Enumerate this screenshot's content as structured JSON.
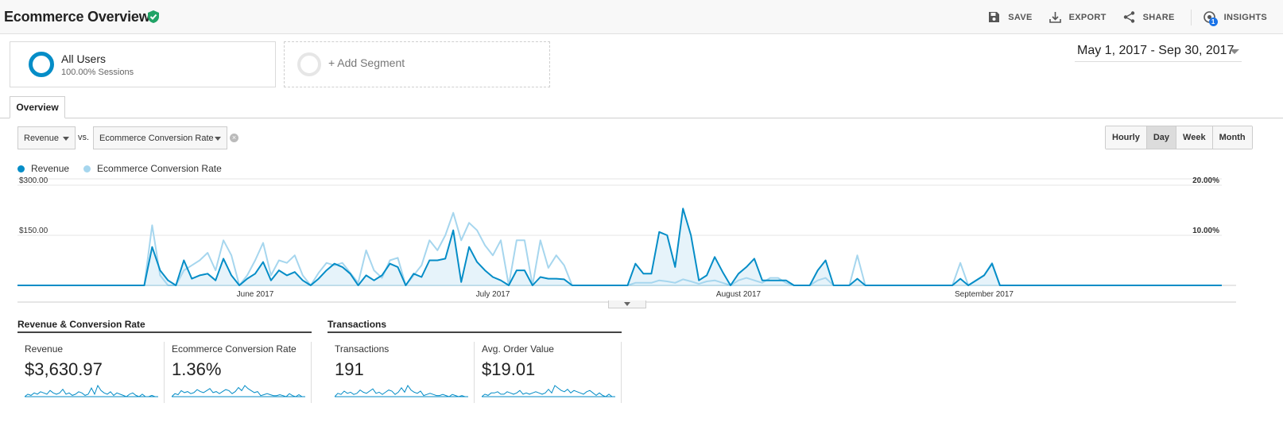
{
  "header": {
    "title": "Ecommerce Overview",
    "actions": [
      {
        "label": "SAVE",
        "icon": "save-icon"
      },
      {
        "label": "EXPORT",
        "icon": "export-icon"
      },
      {
        "label": "SHARE",
        "icon": "share-icon"
      },
      {
        "label": "INSIGHTS",
        "icon": "insights-icon",
        "badge": "1"
      }
    ]
  },
  "segments": {
    "all_users": {
      "name": "All Users",
      "sub": "100.00% Sessions"
    },
    "add_segment": "+ Add Segment"
  },
  "date_range": "May 1, 2017 - Sep 30, 2017",
  "tabs": [
    {
      "label": "Overview"
    }
  ],
  "metric_picker": {
    "primary": "Revenue",
    "vs": "vs.",
    "secondary": "Ecommerce Conversion Rate"
  },
  "time_toggles": [
    {
      "label": "Hourly",
      "active": false
    },
    {
      "label": "Day",
      "active": true
    },
    {
      "label": "Week",
      "active": false
    },
    {
      "label": "Month",
      "active": false
    }
  ],
  "colors": {
    "revenue": "#058dc7",
    "conversion": "#a6d6ee",
    "revenue_fill": "#e6f3fa"
  },
  "chart_data": {
    "type": "line",
    "x_labels": [
      "June 2017",
      "July 2017",
      "August 2017",
      "September 2017"
    ],
    "x_label_days": [
      31,
      61,
      92,
      123
    ],
    "x_range": [
      1,
      153
    ],
    "left_axis": {
      "ticks": [
        "$150.00",
        "$300.00"
      ],
      "tick_values": [
        150,
        300
      ],
      "max": 300
    },
    "right_axis": {
      "ticks": [
        "10.00%",
        "20.00%"
      ],
      "tick_values": [
        10,
        20
      ],
      "max": 20
    },
    "series": [
      {
        "name": "Revenue",
        "axis": "left",
        "points": [
          [
            1,
            0
          ],
          [
            17,
            0
          ],
          [
            18,
            115
          ],
          [
            19,
            45
          ],
          [
            20,
            15
          ],
          [
            21,
            0
          ],
          [
            22,
            75
          ],
          [
            23,
            20
          ],
          [
            24,
            30
          ],
          [
            25,
            35
          ],
          [
            26,
            15
          ],
          [
            27,
            80
          ],
          [
            28,
            30
          ],
          [
            29,
            0
          ],
          [
            30,
            20
          ],
          [
            31,
            35
          ],
          [
            32,
            70
          ],
          [
            33,
            15
          ],
          [
            34,
            45
          ],
          [
            35,
            30
          ],
          [
            36,
            40
          ],
          [
            37,
            15
          ],
          [
            38,
            0
          ],
          [
            39,
            20
          ],
          [
            40,
            45
          ],
          [
            41,
            65
          ],
          [
            42,
            55
          ],
          [
            43,
            35
          ],
          [
            44,
            0
          ],
          [
            45,
            30
          ],
          [
            46,
            15
          ],
          [
            47,
            30
          ],
          [
            48,
            65
          ],
          [
            49,
            55
          ],
          [
            50,
            0
          ],
          [
            51,
            35
          ],
          [
            52,
            25
          ],
          [
            53,
            75
          ],
          [
            54,
            75
          ],
          [
            55,
            80
          ],
          [
            56,
            165
          ],
          [
            57,
            10
          ],
          [
            58,
            115
          ],
          [
            59,
            70
          ],
          [
            60,
            45
          ],
          [
            61,
            25
          ],
          [
            62,
            15
          ],
          [
            63,
            0
          ],
          [
            64,
            45
          ],
          [
            65,
            45
          ],
          [
            66,
            0
          ],
          [
            67,
            25
          ],
          [
            68,
            20
          ],
          [
            69,
            20
          ],
          [
            70,
            18
          ],
          [
            71,
            0
          ],
          [
            78,
            0
          ],
          [
            79,
            65
          ],
          [
            80,
            35
          ],
          [
            81,
            35
          ],
          [
            82,
            160
          ],
          [
            83,
            150
          ],
          [
            84,
            55
          ],
          [
            85,
            230
          ],
          [
            86,
            150
          ],
          [
            87,
            15
          ],
          [
            88,
            30
          ],
          [
            89,
            85
          ],
          [
            90,
            40
          ],
          [
            91,
            0
          ],
          [
            92,
            35
          ],
          [
            93,
            55
          ],
          [
            94,
            80
          ],
          [
            95,
            15
          ],
          [
            96,
            15
          ],
          [
            97,
            15
          ],
          [
            98,
            15
          ],
          [
            99,
            0
          ],
          [
            101,
            0
          ],
          [
            102,
            45
          ],
          [
            103,
            75
          ],
          [
            104,
            0
          ],
          [
            106,
            0
          ],
          [
            107,
            20
          ],
          [
            108,
            0
          ],
          [
            119,
            0
          ],
          [
            120,
            20
          ],
          [
            121,
            0
          ],
          [
            123,
            30
          ],
          [
            124,
            65
          ],
          [
            125,
            0
          ],
          [
            153,
            0
          ]
        ]
      },
      {
        "name": "Ecommerce Conversion Rate",
        "axis": "right",
        "points": [
          [
            1,
            0
          ],
          [
            17,
            0
          ],
          [
            18,
            12
          ],
          [
            19,
            2
          ],
          [
            20,
            0
          ],
          [
            21,
            0
          ],
          [
            22,
            3
          ],
          [
            23,
            4
          ],
          [
            24,
            5
          ],
          [
            25,
            6.5
          ],
          [
            26,
            3
          ],
          [
            27,
            9
          ],
          [
            28,
            6
          ],
          [
            29,
            0
          ],
          [
            30,
            2
          ],
          [
            31,
            5
          ],
          [
            32,
            8.5
          ],
          [
            33,
            2
          ],
          [
            34,
            5
          ],
          [
            35,
            4.5
          ],
          [
            36,
            6
          ],
          [
            37,
            2
          ],
          [
            38,
            0
          ],
          [
            39,
            2.5
          ],
          [
            40,
            4.5
          ],
          [
            41,
            4
          ],
          [
            42,
            4.5
          ],
          [
            43,
            2.5
          ],
          [
            44,
            0.5
          ],
          [
            45,
            7
          ],
          [
            46,
            3
          ],
          [
            47,
            1.5
          ],
          [
            48,
            5
          ],
          [
            49,
            5.5
          ],
          [
            50,
            0
          ],
          [
            51,
            2
          ],
          [
            52,
            4
          ],
          [
            53,
            9
          ],
          [
            54,
            7
          ],
          [
            55,
            10
          ],
          [
            56,
            14.5
          ],
          [
            57,
            9
          ],
          [
            58,
            12.5
          ],
          [
            59,
            11
          ],
          [
            60,
            8
          ],
          [
            61,
            6
          ],
          [
            62,
            9
          ],
          [
            63,
            0
          ],
          [
            64,
            9
          ],
          [
            65,
            9
          ],
          [
            66,
            0
          ],
          [
            67,
            9
          ],
          [
            68,
            3.5
          ],
          [
            69,
            6
          ],
          [
            70,
            4
          ],
          [
            71,
            0
          ],
          [
            78,
            0
          ],
          [
            79,
            0.5
          ],
          [
            80,
            0.5
          ],
          [
            81,
            0.5
          ],
          [
            82,
            1
          ],
          [
            83,
            0.8
          ],
          [
            84,
            0.5
          ],
          [
            85,
            1.2
          ],
          [
            86,
            0.8
          ],
          [
            87,
            0.3
          ],
          [
            88,
            0.8
          ],
          [
            89,
            1
          ],
          [
            90,
            0.5
          ],
          [
            91,
            0
          ],
          [
            92,
            1
          ],
          [
            93,
            1.5
          ],
          [
            94,
            1
          ],
          [
            95,
            0.5
          ],
          [
            96,
            1.5
          ],
          [
            97,
            1.5
          ],
          [
            98,
            0.5
          ],
          [
            99,
            0
          ],
          [
            101,
            0
          ],
          [
            102,
            1
          ],
          [
            103,
            1.5
          ],
          [
            104,
            0
          ],
          [
            106,
            0
          ],
          [
            107,
            6
          ],
          [
            108,
            0
          ],
          [
            119,
            0
          ],
          [
            120,
            4.5
          ],
          [
            121,
            0
          ],
          [
            123,
            2
          ],
          [
            124,
            4.5
          ],
          [
            125,
            0
          ],
          [
            153,
            0
          ]
        ]
      }
    ],
    "legend_position": "top-left",
    "grid": true
  },
  "scorecard_groups": [
    {
      "title": "Revenue & Conversion Rate"
    },
    {
      "title": "Transactions"
    }
  ],
  "scorecards": [
    {
      "label": "Revenue",
      "value": "$3,630.97",
      "spark": [
        0,
        2,
        1,
        3,
        2,
        4,
        3,
        2,
        5,
        3,
        2,
        3,
        6,
        2,
        3,
        1,
        2,
        4,
        3,
        1,
        2,
        7,
        2,
        9,
        5,
        3,
        2,
        4,
        1,
        3,
        2,
        1,
        0,
        2,
        3,
        1,
        0,
        2,
        0,
        0,
        1,
        0,
        0
      ]
    },
    {
      "label": "Ecommerce Conversion Rate",
      "value": "1.36%",
      "spark": [
        0,
        3,
        2,
        6,
        4,
        5,
        3,
        4,
        7,
        5,
        4,
        6,
        8,
        4,
        5,
        3,
        5,
        7,
        6,
        3,
        5,
        9,
        6,
        11,
        8,
        6,
        4,
        5,
        1,
        2,
        3,
        2,
        1,
        1,
        2,
        1,
        0,
        3,
        1,
        0,
        2,
        0,
        0
      ]
    },
    {
      "label": "Transactions",
      "value": "191",
      "spark": [
        0,
        3,
        2,
        5,
        3,
        4,
        2,
        3,
        6,
        4,
        3,
        5,
        7,
        3,
        4,
        2,
        4,
        6,
        5,
        2,
        4,
        8,
        4,
        10,
        6,
        4,
        3,
        5,
        1,
        2,
        3,
        2,
        1,
        1,
        2,
        1,
        0,
        2,
        1,
        0,
        1,
        0,
        0
      ]
    },
    {
      "label": "Avg. Order Value",
      "value": "$19.01",
      "spark": [
        0,
        2,
        1,
        3,
        3,
        4,
        2,
        2,
        4,
        3,
        2,
        3,
        5,
        2,
        3,
        2,
        3,
        4,
        3,
        2,
        3,
        6,
        3,
        9,
        7,
        5,
        4,
        6,
        3,
        5,
        4,
        3,
        2,
        4,
        5,
        3,
        1,
        3,
        1,
        0,
        2,
        0,
        0
      ]
    }
  ]
}
